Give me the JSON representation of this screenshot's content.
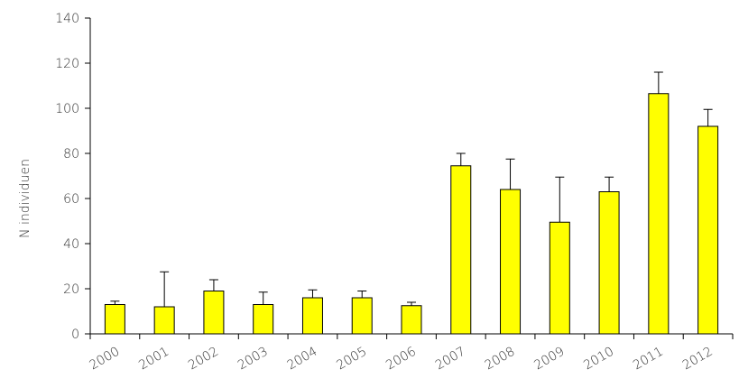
{
  "chart_data": {
    "type": "bar",
    "title": "",
    "xlabel": "",
    "ylabel": "N individuen",
    "categories": [
      "2000",
      "2001",
      "2002",
      "2003",
      "2004",
      "2005",
      "2006",
      "2007",
      "2008",
      "2009",
      "2010",
      "2011",
      "2012"
    ],
    "values": [
      13,
      12,
      19,
      13,
      16,
      16,
      12.5,
      74.5,
      64,
      49.5,
      63,
      106.5,
      92
    ],
    "error_upper": [
      14.5,
      27.5,
      24,
      18.5,
      19.5,
      19,
      14,
      80,
      77.5,
      69.5,
      69.5,
      116,
      99.5
    ],
    "ylim": [
      0,
      140
    ],
    "yticks": [
      0,
      20,
      40,
      60,
      80,
      100,
      120,
      140
    ],
    "grid": false,
    "bar_color": "#ffff00",
    "bar_edge_color": "#000000"
  }
}
